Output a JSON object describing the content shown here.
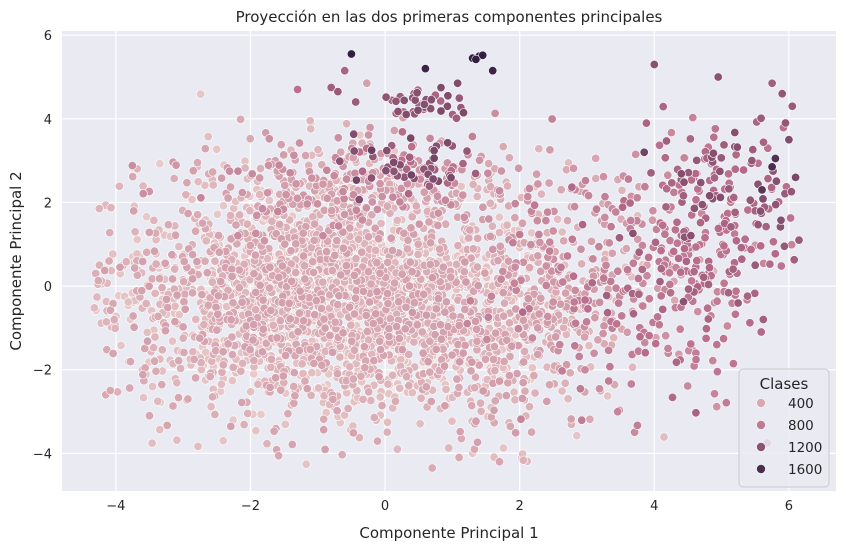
{
  "chart_data": {
    "type": "scatter",
    "title": "Proyección en las dos primeras componentes principales",
    "xlabel": "Componente Principal 1",
    "ylabel": "Componente Principal 2",
    "xlim": [
      -4.8,
      6.7
    ],
    "ylim": [
      -4.9,
      6.1
    ],
    "xticks": [
      -4,
      -2,
      0,
      2,
      4,
      6
    ],
    "yticks": [
      -4,
      -2,
      0,
      2,
      4,
      6
    ],
    "xtick_labels": [
      "−4",
      "−2",
      "0",
      "2",
      "4",
      "6"
    ],
    "ytick_labels": [
      "−4",
      "−2",
      "0",
      "2",
      "4",
      "6"
    ],
    "grid": true,
    "background": "#eaeaf2",
    "hue_range": [
      0,
      1800
    ],
    "palette_light": "#f0d8d2",
    "palette_dark": "#2c1a3e",
    "legend": {
      "title": "Clases",
      "position": "bottom-right",
      "entries": [
        {
          "label": "400",
          "value": 400
        },
        {
          "label": "800",
          "value": 800
        },
        {
          "label": "1200",
          "value": 1200
        },
        {
          "label": "1600",
          "value": 1600
        }
      ]
    },
    "clusters": [
      {
        "cx": -1.0,
        "cy": -0.3,
        "sx": 1.5,
        "sy": 1.35,
        "n": 2300,
        "h": [
          120,
          480
        ]
      },
      {
        "cx": 1.6,
        "cy": -0.9,
        "sx": 0.9,
        "sy": 1.3,
        "n": 500,
        "h": [
          150,
          520
        ]
      },
      {
        "cx": -0.3,
        "cy": 2.3,
        "sx": 1.3,
        "sy": 0.6,
        "n": 350,
        "h": [
          250,
          700
        ]
      },
      {
        "cx": 3.0,
        "cy": 0.2,
        "sx": 0.9,
        "sy": 1.4,
        "n": 220,
        "h": [
          350,
          800
        ]
      },
      {
        "cx": 4.4,
        "cy": 0.4,
        "sx": 0.8,
        "sy": 1.4,
        "n": 220,
        "h": [
          650,
          1050
        ]
      },
      {
        "cx": 5.2,
        "cy": 2.0,
        "sx": 0.7,
        "sy": 0.9,
        "n": 120,
        "h": [
          850,
          1250
        ]
      },
      {
        "cx": 0.4,
        "cy": 3.0,
        "sx": 0.45,
        "sy": 0.4,
        "n": 60,
        "h": [
          850,
          1350
        ]
      },
      {
        "cx": 0.5,
        "cy": 4.4,
        "sx": 0.3,
        "sy": 0.22,
        "n": 40,
        "h": [
          950,
          1300
        ]
      }
    ],
    "points": [
      {
        "x": -0.5,
        "y": 5.55,
        "v": 1750
      },
      {
        "x": 0.6,
        "y": 5.2,
        "v": 1700
      },
      {
        "x": 1.3,
        "y": 5.45,
        "v": 1750
      },
      {
        "x": 1.4,
        "y": 5.5,
        "v": 1750
      },
      {
        "x": 1.45,
        "y": 5.52,
        "v": 1750
      },
      {
        "x": 1.35,
        "y": 5.42,
        "v": 1750
      },
      {
        "x": 1.6,
        "y": 5.15,
        "v": 1700
      },
      {
        "x": 4.0,
        "y": 5.3,
        "v": 1200
      },
      {
        "x": 4.95,
        "y": 5.0,
        "v": 1200
      },
      {
        "x": 5.75,
        "y": 4.85,
        "v": 1050
      },
      {
        "x": 5.9,
        "y": 4.6,
        "v": 1150
      },
      {
        "x": 6.05,
        "y": 4.3,
        "v": 1100
      },
      {
        "x": 5.75,
        "y": 2.85,
        "v": 1600
      },
      {
        "x": 5.8,
        "y": 3.05,
        "v": 1550
      },
      {
        "x": 5.6,
        "y": 2.3,
        "v": 1500
      },
      {
        "x": 6.15,
        "y": 1.1,
        "v": 1100
      },
      {
        "x": 6.1,
        "y": 2.6,
        "v": 1300
      },
      {
        "x": 3.85,
        "y": 3.2,
        "v": 1350
      },
      {
        "x": -0.2,
        "y": 3.25,
        "v": 1400
      },
      {
        "x": -1.3,
        "y": 4.7,
        "v": 900
      },
      {
        "x": -0.8,
        "y": 4.75,
        "v": 1050
      },
      {
        "x": -0.7,
        "y": 4.65,
        "v": 1100
      },
      {
        "x": -0.6,
        "y": 5.15,
        "v": 1000
      },
      {
        "x": -4.3,
        "y": 0.3,
        "v": 350
      },
      {
        "x": -4.1,
        "y": 0.6,
        "v": 380
      },
      {
        "x": -4.15,
        "y": -2.6,
        "v": 400
      },
      {
        "x": -3.5,
        "y": -3.1,
        "v": 420
      },
      {
        "x": 0.7,
        "y": -4.35,
        "v": 380
      },
      {
        "x": 1.1,
        "y": -4.1,
        "v": 400
      },
      {
        "x": 1.7,
        "y": -4.2,
        "v": 430
      },
      {
        "x": 6.0,
        "y": 3.5,
        "v": 1250
      },
      {
        "x": 5.95,
        "y": 3.9,
        "v": 1150
      },
      {
        "x": 5.5,
        "y": 0.5,
        "v": 1100
      }
    ]
  }
}
